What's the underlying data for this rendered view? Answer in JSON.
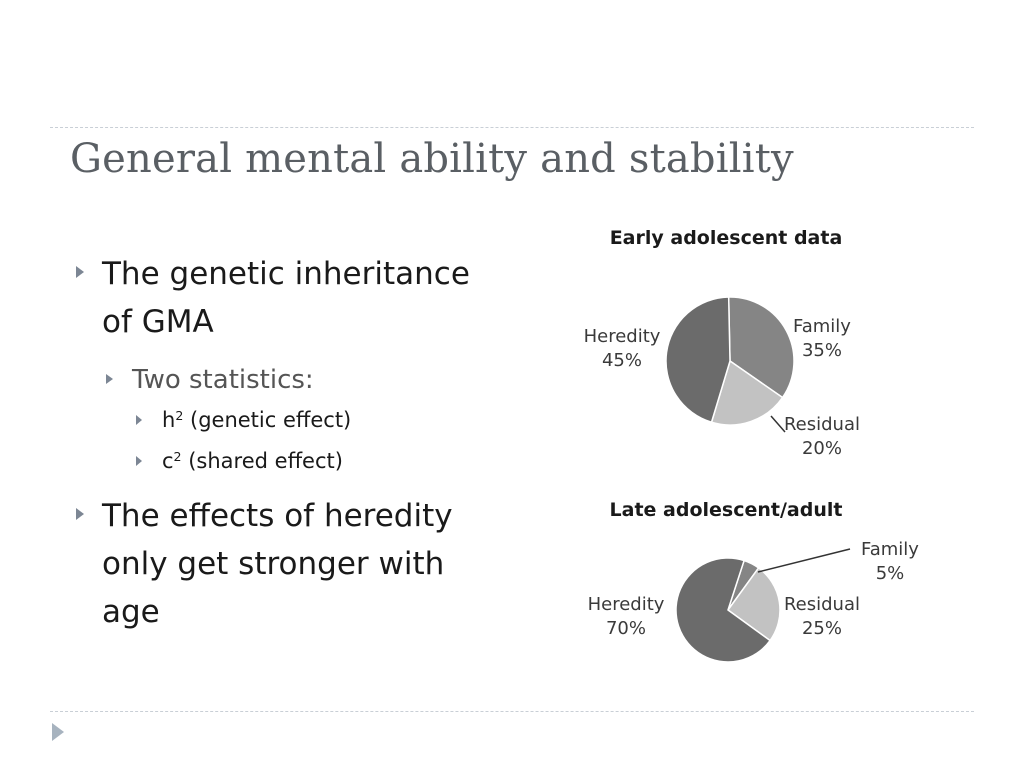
{
  "slide": {
    "title": "General mental ability and stability"
  },
  "bullets": [
    {
      "text": "The genetic inheritance of GMA"
    },
    {
      "text": "Two statistics:"
    },
    {
      "symbol": "h",
      "sup": "2",
      "text": " (genetic effect)"
    },
    {
      "symbol": "c",
      "sup": "2",
      "text": " (shared effect)"
    },
    {
      "text": "The effects of heredity only get stronger with age"
    }
  ],
  "colors": {
    "heredity": "#6b6b6b",
    "family": "#858585",
    "residual": "#c2c2c2",
    "title_text": "#5a5f64",
    "rule": "#c9cfd6",
    "marker": "#7c8694"
  },
  "chart_data": [
    {
      "type": "pie",
      "title": "Early adolescent data",
      "slices": [
        {
          "label": "Family",
          "value": 35,
          "value_label": "35%"
        },
        {
          "label": "Residual",
          "value": 20,
          "value_label": "20%"
        },
        {
          "label": "Heredity",
          "value": 45,
          "value_label": "45%"
        }
      ]
    },
    {
      "type": "pie",
      "title": "Late adolescent/adult",
      "slices": [
        {
          "label": "Family",
          "value": 5,
          "value_label": "5%"
        },
        {
          "label": "Residual",
          "value": 25,
          "value_label": "25%"
        },
        {
          "label": "Heredity",
          "value": 70,
          "value_label": "70%"
        }
      ]
    }
  ]
}
